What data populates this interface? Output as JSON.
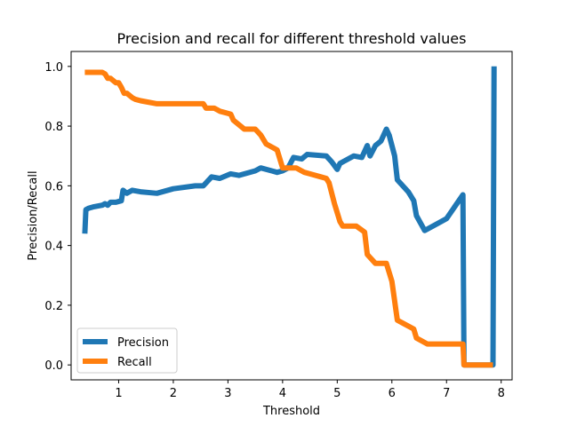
{
  "chart_data": {
    "type": "line",
    "title": "Precision and recall for different threshold values",
    "xlabel": "Threshold",
    "ylabel": "Precision/Recall",
    "xlim": [
      0.13,
      8.2
    ],
    "ylim": [
      -0.05,
      1.05
    ],
    "xticks": [
      "1",
      "2",
      "3",
      "4",
      "5",
      "6",
      "7",
      "8"
    ],
    "yticks": [
      "0.0",
      "0.2",
      "0.4",
      "0.6",
      "0.8",
      "1.0"
    ],
    "grid": false,
    "legend_position": "lower-left",
    "series": [
      {
        "name": "Precision",
        "color": "#1f77b4",
        "x": [
          0.38,
          0.4,
          0.45,
          0.55,
          0.7,
          0.75,
          0.8,
          0.85,
          0.95,
          1.05,
          1.08,
          1.15,
          1.25,
          1.4,
          1.7,
          2.0,
          2.4,
          2.55,
          2.7,
          2.85,
          3.05,
          3.2,
          3.5,
          3.6,
          3.8,
          3.9,
          4.0,
          4.1,
          4.2,
          4.35,
          4.45,
          4.8,
          4.9,
          5.0,
          5.05,
          5.3,
          5.45,
          5.55,
          5.6,
          5.7,
          5.8,
          5.9,
          5.95,
          6.05,
          6.1,
          6.3,
          6.4,
          6.45,
          6.6,
          7.0,
          7.3,
          7.32,
          7.85,
          7.87
        ],
        "y": [
          0.44,
          0.52,
          0.525,
          0.53,
          0.535,
          0.54,
          0.535,
          0.545,
          0.545,
          0.55,
          0.585,
          0.575,
          0.585,
          0.58,
          0.575,
          0.59,
          0.6,
          0.6,
          0.63,
          0.625,
          0.64,
          0.635,
          0.65,
          0.66,
          0.65,
          0.645,
          0.65,
          0.66,
          0.695,
          0.69,
          0.705,
          0.7,
          0.68,
          0.655,
          0.675,
          0.7,
          0.695,
          0.735,
          0.7,
          0.735,
          0.75,
          0.79,
          0.77,
          0.7,
          0.62,
          0.58,
          0.55,
          0.5,
          0.45,
          0.49,
          0.57,
          0.0,
          0.0,
          1.0
        ]
      },
      {
        "name": "Recall",
        "color": "#ff7f0e",
        "x": [
          0.38,
          0.7,
          0.75,
          0.8,
          0.85,
          0.95,
          1.0,
          1.05,
          1.1,
          1.15,
          1.25,
          1.3,
          1.4,
          1.7,
          2.0,
          2.4,
          2.55,
          2.6,
          2.75,
          2.85,
          3.05,
          3.1,
          3.3,
          3.5,
          3.6,
          3.7,
          3.85,
          3.9,
          4.0,
          4.25,
          4.4,
          4.5,
          4.7,
          4.8,
          4.85,
          4.95,
          5.0,
          5.05,
          5.1,
          5.35,
          5.5,
          5.55,
          5.6,
          5.7,
          5.9,
          5.95,
          6.0,
          6.1,
          6.2,
          6.4,
          6.45,
          6.65,
          7.0,
          7.3,
          7.32,
          7.85
        ],
        "y": [
          0.98,
          0.98,
          0.975,
          0.96,
          0.96,
          0.945,
          0.945,
          0.93,
          0.91,
          0.91,
          0.895,
          0.89,
          0.885,
          0.875,
          0.875,
          0.875,
          0.875,
          0.86,
          0.86,
          0.85,
          0.84,
          0.82,
          0.79,
          0.79,
          0.77,
          0.74,
          0.725,
          0.72,
          0.66,
          0.66,
          0.645,
          0.64,
          0.63,
          0.625,
          0.61,
          0.54,
          0.51,
          0.48,
          0.465,
          0.465,
          0.445,
          0.37,
          0.36,
          0.34,
          0.34,
          0.31,
          0.28,
          0.15,
          0.14,
          0.12,
          0.09,
          0.07,
          0.07,
          0.07,
          0.0,
          0.0
        ]
      }
    ]
  }
}
